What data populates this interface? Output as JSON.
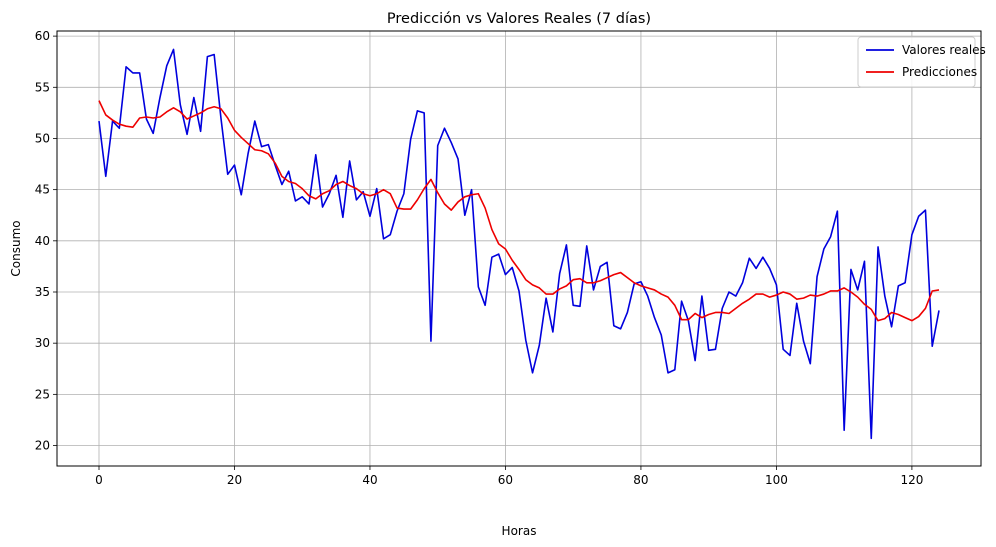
{
  "chart_data": {
    "type": "line",
    "title": "Predicción vs Valores Reales (7 días)",
    "xlabel": "Horas",
    "ylabel": "Consumo",
    "xlim": [
      -6.2,
      130.2
    ],
    "ylim": [
      18.0,
      60.5
    ],
    "xticks": [
      0,
      20,
      40,
      60,
      80,
      100,
      120
    ],
    "yticks": [
      20,
      25,
      30,
      35,
      40,
      45,
      50,
      55,
      60
    ],
    "grid": true,
    "legend_position": "top-right",
    "series": [
      {
        "name": "Valores reales",
        "color": "#0000dd",
        "values": [
          51.7,
          46.3,
          51.7,
          51.0,
          57.0,
          56.4,
          56.4,
          51.9,
          50.5,
          54.0,
          57.1,
          58.7,
          53.3,
          50.4,
          54.0,
          50.7,
          58.0,
          58.2,
          52.0,
          46.5,
          47.4,
          44.5,
          48.5,
          51.7,
          49.2,
          49.4,
          47.4,
          45.5,
          46.8,
          43.9,
          44.3,
          43.6,
          48.4,
          43.3,
          44.6,
          46.4,
          42.3,
          47.8,
          44.0,
          44.8,
          42.4,
          45.1,
          40.2,
          40.6,
          42.9,
          44.6,
          49.9,
          52.7,
          52.5,
          30.2,
          49.3,
          51.0,
          49.6,
          48.0,
          42.5,
          45.0,
          35.5,
          33.7,
          38.4,
          38.7,
          36.7,
          37.4,
          35.1,
          30.3,
          27.1,
          29.8,
          34.4,
          31.1,
          36.8,
          39.6,
          33.7,
          33.6,
          39.5,
          35.2,
          37.5,
          37.9,
          31.7,
          31.4,
          33.0,
          35.8,
          36.0,
          34.6,
          32.5,
          30.8,
          27.1,
          27.4,
          34.1,
          32.2,
          28.3,
          34.6,
          29.3,
          29.4,
          33.4,
          35.0,
          34.6,
          35.9,
          38.3,
          37.3,
          38.4,
          37.3,
          35.7,
          29.4,
          28.8,
          33.9,
          30.2,
          28.0,
          36.5,
          39.2,
          40.4,
          42.9,
          21.5,
          37.2,
          35.2,
          38.0,
          20.7,
          39.4,
          34.6,
          31.6,
          35.6,
          35.9,
          40.6,
          42.4,
          43.0,
          29.7,
          33.2
        ]
      },
      {
        "name": "Predicciones",
        "color": "#ee0000",
        "values": [
          53.7,
          52.3,
          51.8,
          51.4,
          51.2,
          51.1,
          52.0,
          52.1,
          52.0,
          52.1,
          52.6,
          53.0,
          52.6,
          51.9,
          52.2,
          52.5,
          52.9,
          53.1,
          52.9,
          52.0,
          50.8,
          50.1,
          49.5,
          48.9,
          48.8,
          48.5,
          47.6,
          46.3,
          45.8,
          45.6,
          45.1,
          44.4,
          44.1,
          44.6,
          44.9,
          45.5,
          45.8,
          45.4,
          45.1,
          44.6,
          44.4,
          44.6,
          45.0,
          44.6,
          43.2,
          43.1,
          43.1,
          44.0,
          45.1,
          46.0,
          44.7,
          43.6,
          43.0,
          43.8,
          44.3,
          44.5,
          44.6,
          43.2,
          41.1,
          39.7,
          39.2,
          38.1,
          37.2,
          36.2,
          35.7,
          35.4,
          34.8,
          34.8,
          35.3,
          35.6,
          36.2,
          36.3,
          35.9,
          35.9,
          36.1,
          36.4,
          36.7,
          36.9,
          36.4,
          35.9,
          35.6,
          35.4,
          35.2,
          34.8,
          34.5,
          33.7,
          32.3,
          32.3,
          32.9,
          32.5,
          32.8,
          33.0,
          33.0,
          32.9,
          33.4,
          33.9,
          34.3,
          34.8,
          34.8,
          34.5,
          34.7,
          35.0,
          34.8,
          34.3,
          34.4,
          34.7,
          34.6,
          34.8,
          35.1,
          35.1,
          35.4,
          35.0,
          34.5,
          33.8,
          33.3,
          32.2,
          32.4,
          33.0,
          32.8,
          32.5,
          32.2,
          32.6,
          33.4,
          35.1,
          35.2
        ]
      }
    ]
  }
}
